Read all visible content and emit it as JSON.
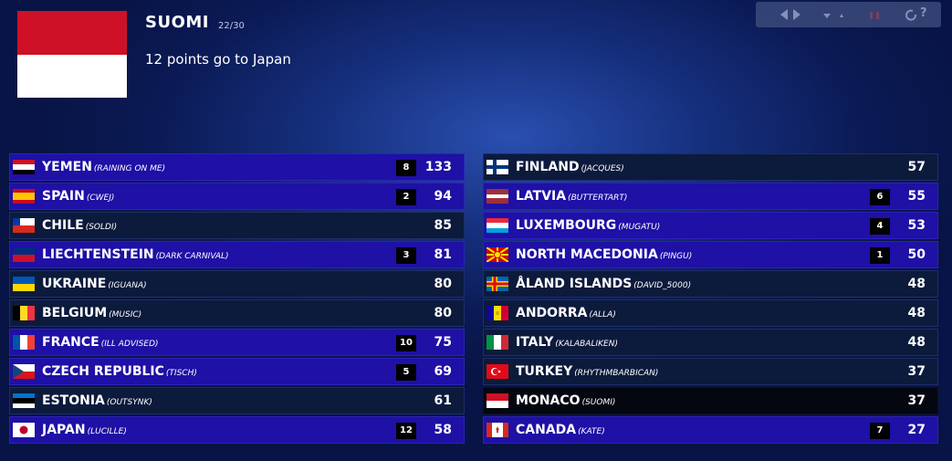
{
  "header": {
    "country": "SUOMI",
    "progress": "22/30",
    "message": "12 points go to Japan"
  },
  "controls": {
    "help": "?"
  },
  "standings": [
    {
      "country": "YEMEN",
      "song": "(RAINING ON ME)",
      "points": 8,
      "total": 133
    },
    {
      "country": "SPAIN",
      "song": "(CWEJ)",
      "points": 2,
      "total": 94
    },
    {
      "country": "CHILE",
      "song": "(SOLDI)",
      "total": 85
    },
    {
      "country": "LIECHTENSTEIN",
      "song": "(DARK CARNIVAL)",
      "points": 3,
      "total": 81
    },
    {
      "country": "UKRAINE",
      "song": "(IGUANA)",
      "total": 80
    },
    {
      "country": "BELGIUM",
      "song": "(MUSIC)",
      "total": 80
    },
    {
      "country": "FRANCE",
      "song": "(ILL ADVISED)",
      "points": 10,
      "total": 75
    },
    {
      "country": "CZECH REPUBLIC",
      "song": "(TISCH)",
      "points": 5,
      "total": 69
    },
    {
      "country": "ESTONIA",
      "song": "(OUTSYNK)",
      "total": 61
    },
    {
      "country": "JAPAN",
      "song": "(LUCILLE)",
      "points": 12,
      "total": 58
    },
    {
      "country": "FINLAND",
      "song": "(JACQUES)",
      "total": 57
    },
    {
      "country": "LATVIA",
      "song": "(BUTTERTART)",
      "points": 6,
      "total": 55
    },
    {
      "country": "LUXEMBOURG",
      "song": "(MUGATU)",
      "points": 4,
      "total": 53
    },
    {
      "country": "NORTH MACEDONIA",
      "song": "(PINGU)",
      "points": 1,
      "total": 50
    },
    {
      "country": "ÅLAND ISLANDS",
      "song": "(DAVID_5000)",
      "total": 48
    },
    {
      "country": "ANDORRA",
      "song": "(ALLA)",
      "total": 48
    },
    {
      "country": "ITALY",
      "song": "(KALABALIKEN)",
      "total": 48
    },
    {
      "country": "TURKEY",
      "song": "(RHYTHMBARBICAN)",
      "total": 37
    },
    {
      "country": "MONACO",
      "song": "(SUOMI)",
      "total": 37
    },
    {
      "country": "CANADA",
      "song": "(KATE)",
      "points": 7,
      "total": 27
    }
  ]
}
